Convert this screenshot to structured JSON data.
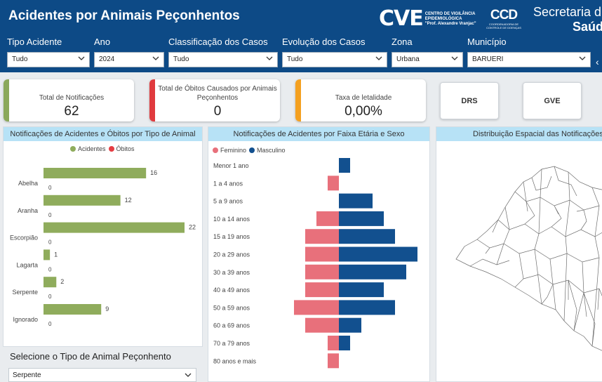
{
  "header": {
    "title": "Acidentes por Animais Peçonhentos",
    "logo_cve": {
      "mark": "CVE",
      "line1": "CENTRO DE VIGILÂNCIA",
      "line2": "EPIDEMIOLÓGICA",
      "line3": "\"Prof. Alexandre Vranjac\""
    },
    "logo_ccd": {
      "mark": "CCD",
      "line1": "COORDENADORIA DE",
      "line2": "CONTROLE DE DOENÇAS"
    },
    "secretaria": {
      "line1": "Secretaria d",
      "line2": "Saúd"
    }
  },
  "filters": [
    {
      "label": "Tipo Acidente",
      "value": "Tudo"
    },
    {
      "label": "Ano",
      "value": "2024"
    },
    {
      "label": "Classificação dos Casos",
      "value": "Tudo"
    },
    {
      "label": "Evolução dos Casos",
      "value": "Tudo"
    },
    {
      "label": "Zona",
      "value": "Urbana"
    },
    {
      "label": "Município",
      "value": "BARUERI"
    }
  ],
  "kpis": [
    {
      "label": "Total de Notificações",
      "value": "62",
      "color": "#8aa85a"
    },
    {
      "label": "Total de Óbitos Causados por Animais Peçonhentos",
      "value": "0",
      "color": "#e03a3e"
    },
    {
      "label": "Taxa de letalidade",
      "value": "0,00%",
      "color": "#f4a020"
    }
  ],
  "buttons": {
    "drs": "DRS",
    "gve": "GVE"
  },
  "panels": {
    "animal_title": "Notificações de Acidentes e Óbitos por Tipo de Animal",
    "age_title": "Notificações de Acidentes por Faixa Etária e Sexo",
    "map_title": "Distribuição Espacial das Notificações de"
  },
  "slicer": {
    "title": "Selecione o Tipo de Animal Peçonhento",
    "value": "Serpente"
  },
  "colors": {
    "acidentes": "#8fac5c",
    "obitos": "#e53d43",
    "feminino": "#e8707b",
    "masculino": "#12508f"
  },
  "chart_data": [
    {
      "type": "bar",
      "orientation": "horizontal",
      "categories": [
        "Abelha",
        "Aranha",
        "Escorpião",
        "Lagarta",
        "Serpente",
        "Ignorado"
      ],
      "series": [
        {
          "name": "Acidentes",
          "values": [
            16,
            12,
            22,
            1,
            2,
            9
          ]
        },
        {
          "name": "Óbitos",
          "values": [
            0,
            0,
            0,
            0,
            0,
            0
          ]
        }
      ],
      "legend": "top-center"
    },
    {
      "type": "bar",
      "orientation": "horizontal-population-pyramid",
      "categories": [
        "Menor 1 ano",
        "1 a 4 anos",
        "5 a 9 anos",
        "10 a 14 anos",
        "15 a 19 anos",
        "20 a 29 anos",
        "30 a 39 anos",
        "40 a 49 anos",
        "50 a 59 anos",
        "60 a 69 anos",
        "70 a 79 anos",
        "80 anos e mais"
      ],
      "series": [
        {
          "name": "Feminino",
          "values": [
            0,
            1,
            0,
            2,
            3,
            3,
            3,
            3,
            4,
            3,
            1,
            1
          ]
        },
        {
          "name": "Masculino",
          "values": [
            1,
            0,
            3,
            4,
            5,
            7,
            6,
            4,
            5,
            2,
            1,
            0
          ]
        }
      ],
      "legend": "top-left"
    }
  ]
}
